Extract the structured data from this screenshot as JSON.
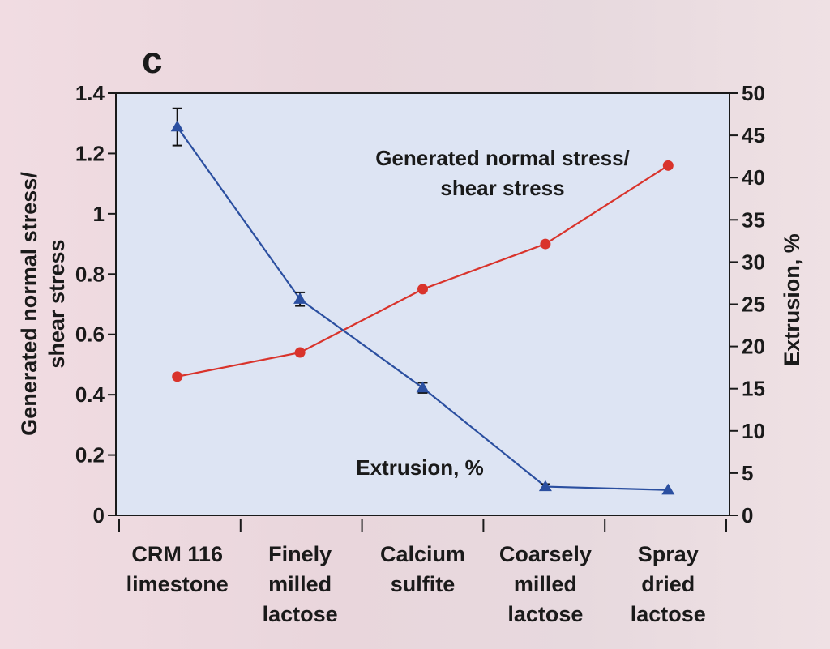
{
  "panel_label": "c",
  "colors": {
    "plot_background": "#dde4f3",
    "normal_stress_series": "#d9332b",
    "extrusion_series": "#2b4fa0",
    "axis": "#1a1a1a"
  },
  "chart_data": {
    "type": "line",
    "categories": [
      [
        "CRM 116",
        "limestone"
      ],
      [
        "Finely",
        "milled",
        "lactose"
      ],
      [
        "Calcium",
        "sulfite"
      ],
      [
        "Coarsely",
        "milled",
        "lactose"
      ],
      [
        "Spray",
        "dried",
        "lactose"
      ]
    ],
    "y_left": {
      "label": [
        "Generated normal stress/",
        "shear stress"
      ],
      "ylim": [
        0,
        1.4
      ],
      "ticks": [
        0,
        0.2,
        0.4,
        0.6,
        0.8,
        1,
        1.2,
        1.4
      ],
      "tick_labels": [
        "0",
        "0.2",
        "0.4",
        "0.6",
        "0.8",
        "1",
        "1.2",
        "1.4"
      ]
    },
    "y_right": {
      "label": "Extrusion, %",
      "ylim": [
        0,
        50
      ],
      "ticks": [
        0,
        5,
        10,
        15,
        20,
        25,
        30,
        35,
        40,
        45,
        50
      ],
      "tick_labels": [
        "0",
        "5",
        "10",
        "15",
        "20",
        "25",
        "30",
        "35",
        "40",
        "45",
        "50"
      ]
    },
    "grid": false,
    "series": [
      {
        "name": "Generated normal stress/ shear stress",
        "axis": "left",
        "marker": "circle",
        "values": [
          0.46,
          0.54,
          0.75,
          0.9,
          1.16
        ]
      },
      {
        "name": "Extrusion, %",
        "axis": "right",
        "marker": "triangle",
        "values": [
          46,
          25.6,
          15.1,
          3.4,
          3.0
        ],
        "error": [
          2.2,
          0.8,
          0.6,
          0.3,
          0
        ]
      }
    ],
    "annotations": [
      {
        "text": [
          "Generated normal stress/",
          "shear stress"
        ]
      },
      {
        "text": [
          "Extrusion, %"
        ]
      }
    ]
  }
}
